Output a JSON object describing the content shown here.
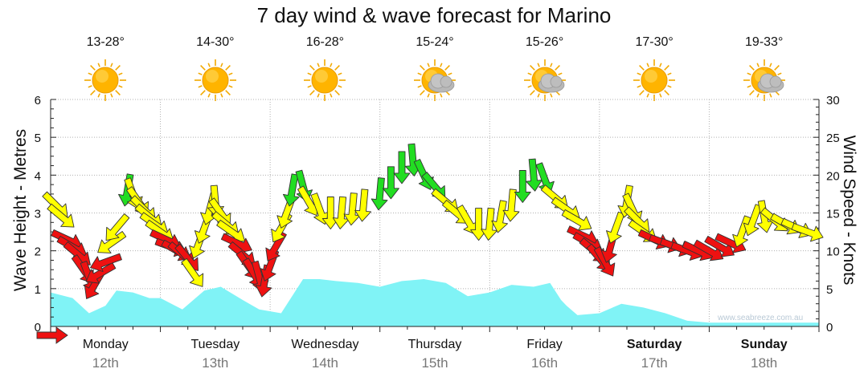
{
  "title": "7 day wind & wave forecast for Marino",
  "watermark": "www.seabreeze.com.au",
  "colors": {
    "wave_fill": "#80f3f6",
    "wind_yellow": "#ffff00",
    "wind_green": "#22dd22",
    "wind_red": "#ee1111",
    "grid": "#b0b0b0"
  },
  "days": [
    {
      "name": "Monday",
      "date": "12th",
      "bold": false,
      "temp": "13-28°",
      "icon": "sun-icon"
    },
    {
      "name": "Tuesday",
      "date": "13th",
      "bold": false,
      "temp": "14-30°",
      "icon": "sun-icon"
    },
    {
      "name": "Wednesday",
      "date": "14th",
      "bold": false,
      "temp": "16-28°",
      "icon": "sun-icon"
    },
    {
      "name": "Thursday",
      "date": "15th",
      "bold": false,
      "temp": "15-24°",
      "icon": "partly-cloudy-icon"
    },
    {
      "name": "Friday",
      "date": "16th",
      "bold": false,
      "temp": "15-26°",
      "icon": "partly-cloudy-icon"
    },
    {
      "name": "Saturday",
      "date": "17th",
      "bold": true,
      "temp": "17-30°",
      "icon": "sun-icon"
    },
    {
      "name": "Sunday",
      "date": "18th",
      "bold": true,
      "temp": "19-33°",
      "icon": "partly-cloudy-icon"
    }
  ],
  "chart_data": {
    "type": "area",
    "title": "7 day wind & wave forecast for Marino",
    "xlabel": "",
    "y_left": {
      "label": "Wave Height - Metres",
      "min": 0,
      "max": 6,
      "ticks": [
        "0",
        "1",
        "2",
        "3",
        "4",
        "5",
        "6"
      ]
    },
    "y_right": {
      "label": "Wind Speed - Knots",
      "min": 0,
      "max": 30,
      "ticks": [
        "0",
        "5",
        "10",
        "15",
        "20",
        "25",
        "30"
      ]
    },
    "x_days": 7,
    "grid": true,
    "series": [
      {
        "kind": "area",
        "axis": "left",
        "t_days": [
          0,
          0.2,
          0.35,
          0.5,
          0.6,
          0.75,
          0.9,
          1.0,
          1.2,
          1.4,
          1.55,
          1.75,
          1.9,
          2.1,
          2.3,
          2.45,
          2.6,
          2.8,
          3.0,
          3.2,
          3.4,
          3.6,
          3.8,
          4.0,
          4.2,
          4.4,
          4.55,
          4.65,
          4.7,
          4.8,
          5.0,
          5.2,
          5.4,
          5.6,
          5.8,
          6.0,
          6.2,
          6.4,
          6.6,
          6.8,
          7.0
        ],
        "values": [
          0.9,
          0.75,
          0.35,
          0.55,
          0.95,
          0.9,
          0.75,
          0.75,
          0.45,
          0.95,
          1.05,
          0.7,
          0.45,
          0.35,
          1.25,
          1.25,
          1.2,
          1.15,
          1.05,
          1.2,
          1.25,
          1.15,
          0.8,
          0.9,
          1.1,
          1.05,
          1.15,
          0.7,
          0.55,
          0.3,
          0.35,
          0.6,
          0.5,
          0.35,
          0.15,
          0.1,
          0.1,
          0.1,
          0.1,
          0.1,
          0.1
        ]
      },
      {
        "kind": "wind_arrows",
        "axis": "right",
        "points": [
          {
            "t": 0.05,
            "v": 16,
            "dir": 135,
            "c": "yellow"
          },
          {
            "t": 0.1,
            "v": 14.5,
            "dir": 130,
            "c": "yellow"
          },
          {
            "t": 0.15,
            "v": 11.5,
            "dir": 115,
            "c": "red"
          },
          {
            "t": 0.2,
            "v": 10.5,
            "dir": 120,
            "c": "red"
          },
          {
            "t": 0.25,
            "v": 9.5,
            "dir": 130,
            "c": "red"
          },
          {
            "t": 0.3,
            "v": 7.5,
            "dir": 145,
            "c": "red"
          },
          {
            "t": 0.35,
            "v": 6.5,
            "dir": 160,
            "c": "red"
          },
          {
            "t": 0.4,
            "v": 5.5,
            "dir": 210,
            "c": "red"
          },
          {
            "t": 0.45,
            "v": 7,
            "dir": 240,
            "c": "red"
          },
          {
            "t": 0.5,
            "v": 8.5,
            "dir": 250,
            "c": "red"
          },
          {
            "t": 0.55,
            "v": 11,
            "dir": 235,
            "c": "yellow"
          },
          {
            "t": 0.6,
            "v": 13,
            "dir": 220,
            "c": "yellow"
          },
          {
            "t": 0.7,
            "v": 18,
            "dir": 190,
            "c": "green"
          },
          {
            "t": 0.75,
            "v": 17.5,
            "dir": 160,
            "c": "yellow"
          },
          {
            "t": 0.8,
            "v": 16.5,
            "dir": 145,
            "c": "yellow"
          },
          {
            "t": 0.85,
            "v": 15.5,
            "dir": 135,
            "c": "yellow"
          },
          {
            "t": 0.9,
            "v": 14.5,
            "dir": 130,
            "c": "yellow"
          },
          {
            "t": 0.95,
            "v": 13.5,
            "dir": 125,
            "c": "yellow"
          },
          {
            "t": 1.0,
            "v": 12.5,
            "dir": 125,
            "c": "yellow"
          },
          {
            "t": 1.05,
            "v": 11.5,
            "dir": 115,
            "c": "red"
          },
          {
            "t": 1.1,
            "v": 10.5,
            "dir": 110,
            "c": "red"
          },
          {
            "t": 1.15,
            "v": 10,
            "dir": 120,
            "c": "red"
          },
          {
            "t": 1.2,
            "v": 9.5,
            "dir": 130,
            "c": "red"
          },
          {
            "t": 1.25,
            "v": 9,
            "dir": 140,
            "c": "red"
          },
          {
            "t": 1.3,
            "v": 7,
            "dir": 145,
            "c": "yellow"
          },
          {
            "t": 1.35,
            "v": 11,
            "dir": 200,
            "c": "yellow"
          },
          {
            "t": 1.4,
            "v": 13,
            "dir": 200,
            "c": "yellow"
          },
          {
            "t": 1.45,
            "v": 15.5,
            "dir": 195,
            "c": "yellow"
          },
          {
            "t": 1.5,
            "v": 16.5,
            "dir": 175,
            "c": "yellow"
          },
          {
            "t": 1.55,
            "v": 15,
            "dir": 145,
            "c": "yellow"
          },
          {
            "t": 1.6,
            "v": 13.5,
            "dir": 130,
            "c": "yellow"
          },
          {
            "t": 1.65,
            "v": 12.5,
            "dir": 125,
            "c": "yellow"
          },
          {
            "t": 1.7,
            "v": 11,
            "dir": 115,
            "c": "red"
          },
          {
            "t": 1.75,
            "v": 9.5,
            "dir": 130,
            "c": "red"
          },
          {
            "t": 1.8,
            "v": 8,
            "dir": 145,
            "c": "red"
          },
          {
            "t": 1.85,
            "v": 7,
            "dir": 150,
            "c": "red"
          },
          {
            "t": 1.9,
            "v": 6.5,
            "dir": 165,
            "c": "red"
          },
          {
            "t": 1.95,
            "v": 6,
            "dir": 190,
            "c": "red"
          },
          {
            "t": 2.0,
            "v": 8,
            "dir": 200,
            "c": "red"
          },
          {
            "t": 2.05,
            "v": 10.5,
            "dir": 210,
            "c": "red"
          },
          {
            "t": 2.1,
            "v": 13,
            "dir": 210,
            "c": "yellow"
          },
          {
            "t": 2.15,
            "v": 15,
            "dir": 200,
            "c": "yellow"
          },
          {
            "t": 2.2,
            "v": 18,
            "dir": 190,
            "c": "green"
          },
          {
            "t": 2.3,
            "v": 18.5,
            "dir": 165,
            "c": "green"
          },
          {
            "t": 2.35,
            "v": 16.5,
            "dir": 150,
            "c": "yellow"
          },
          {
            "t": 2.45,
            "v": 15.5,
            "dir": 160,
            "c": "yellow"
          },
          {
            "t": 2.55,
            "v": 15,
            "dir": 180,
            "c": "yellow"
          },
          {
            "t": 2.65,
            "v": 15,
            "dir": 185,
            "c": "yellow"
          },
          {
            "t": 2.75,
            "v": 15.5,
            "dir": 185,
            "c": "yellow"
          },
          {
            "t": 2.85,
            "v": 16,
            "dir": 185,
            "c": "yellow"
          },
          {
            "t": 3.0,
            "v": 17.5,
            "dir": 185,
            "c": "green"
          },
          {
            "t": 3.1,
            "v": 19,
            "dir": 180,
            "c": "green"
          },
          {
            "t": 3.2,
            "v": 21,
            "dir": 180,
            "c": "green"
          },
          {
            "t": 3.3,
            "v": 22,
            "dir": 175,
            "c": "green"
          },
          {
            "t": 3.4,
            "v": 20,
            "dir": 155,
            "c": "green"
          },
          {
            "t": 3.5,
            "v": 18.5,
            "dir": 140,
            "c": "green"
          },
          {
            "t": 3.6,
            "v": 16.5,
            "dir": 130,
            "c": "yellow"
          },
          {
            "t": 3.7,
            "v": 15,
            "dir": 130,
            "c": "yellow"
          },
          {
            "t": 3.8,
            "v": 14,
            "dir": 150,
            "c": "yellow"
          },
          {
            "t": 3.9,
            "v": 13.5,
            "dir": 180,
            "c": "yellow"
          },
          {
            "t": 4.0,
            "v": 13.5,
            "dir": 185,
            "c": "yellow"
          },
          {
            "t": 4.1,
            "v": 14.5,
            "dir": 190,
            "c": "yellow"
          },
          {
            "t": 4.2,
            "v": 16,
            "dir": 185,
            "c": "yellow"
          },
          {
            "t": 4.3,
            "v": 18.5,
            "dir": 180,
            "c": "green"
          },
          {
            "t": 4.4,
            "v": 20,
            "dir": 175,
            "c": "green"
          },
          {
            "t": 4.5,
            "v": 19.5,
            "dir": 160,
            "c": "green"
          },
          {
            "t": 4.6,
            "v": 17,
            "dir": 130,
            "c": "yellow"
          },
          {
            "t": 4.7,
            "v": 15.5,
            "dir": 125,
            "c": "yellow"
          },
          {
            "t": 4.8,
            "v": 14,
            "dir": 120,
            "c": "yellow"
          },
          {
            "t": 4.85,
            "v": 12,
            "dir": 115,
            "c": "red"
          },
          {
            "t": 4.9,
            "v": 11,
            "dir": 120,
            "c": "red"
          },
          {
            "t": 4.95,
            "v": 10,
            "dir": 130,
            "c": "red"
          },
          {
            "t": 5.0,
            "v": 9,
            "dir": 140,
            "c": "red"
          },
          {
            "t": 5.05,
            "v": 8.5,
            "dir": 150,
            "c": "red"
          },
          {
            "t": 5.1,
            "v": 10.5,
            "dir": 195,
            "c": "red"
          },
          {
            "t": 5.15,
            "v": 13,
            "dir": 200,
            "c": "yellow"
          },
          {
            "t": 5.25,
            "v": 16.5,
            "dir": 190,
            "c": "yellow"
          },
          {
            "t": 5.3,
            "v": 15.5,
            "dir": 155,
            "c": "yellow"
          },
          {
            "t": 5.35,
            "v": 14,
            "dir": 135,
            "c": "yellow"
          },
          {
            "t": 5.4,
            "v": 12.5,
            "dir": 125,
            "c": "yellow"
          },
          {
            "t": 5.5,
            "v": 11.5,
            "dir": 115,
            "c": "red"
          },
          {
            "t": 5.6,
            "v": 11,
            "dir": 110,
            "c": "red"
          },
          {
            "t": 5.7,
            "v": 10.5,
            "dir": 110,
            "c": "red"
          },
          {
            "t": 5.8,
            "v": 10,
            "dir": 110,
            "c": "red"
          },
          {
            "t": 5.9,
            "v": 10,
            "dir": 115,
            "c": "red"
          },
          {
            "t": 6.0,
            "v": 10,
            "dir": 120,
            "c": "red"
          },
          {
            "t": 6.1,
            "v": 10.5,
            "dir": 120,
            "c": "red"
          },
          {
            "t": 6.2,
            "v": 11,
            "dir": 115,
            "c": "red"
          },
          {
            "t": 6.3,
            "v": 12.5,
            "dir": 200,
            "c": "yellow"
          },
          {
            "t": 6.4,
            "v": 14,
            "dir": 200,
            "c": "yellow"
          },
          {
            "t": 6.5,
            "v": 14.5,
            "dir": 170,
            "c": "yellow"
          },
          {
            "t": 6.6,
            "v": 14,
            "dir": 130,
            "c": "yellow"
          },
          {
            "t": 6.7,
            "v": 13.5,
            "dir": 120,
            "c": "yellow"
          },
          {
            "t": 6.8,
            "v": 13,
            "dir": 115,
            "c": "yellow"
          },
          {
            "t": 6.9,
            "v": 12.5,
            "dir": 110,
            "c": "yellow"
          }
        ]
      }
    ],
    "legend_marker": "red-arrow"
  }
}
